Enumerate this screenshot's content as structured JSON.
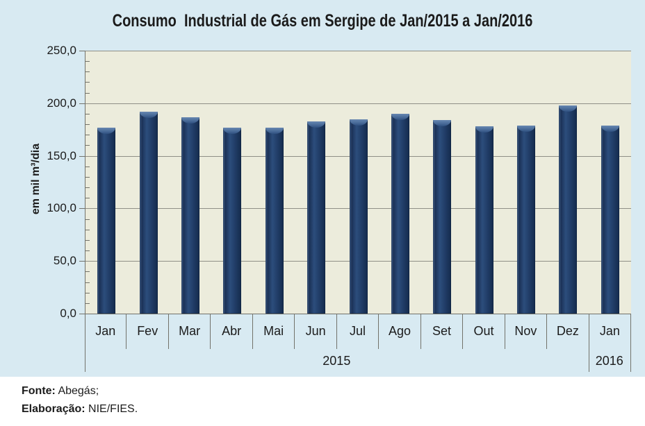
{
  "chart_data": {
    "type": "bar",
    "title": "Consumo  Industrial de Gás em Sergipe de Jan/2015 a Jan/2016",
    "ylabel": "em mil m³/dia",
    "ylim": [
      0,
      250
    ],
    "ytick_step": 50,
    "ytick_labels": [
      "0,0",
      "50,0",
      "100,0",
      "150,0",
      "200,0",
      "250,0"
    ],
    "minor_tick_step": 10,
    "grid": true,
    "legend": "none",
    "categories": [
      "Jan",
      "Fev",
      "Mar",
      "Abr",
      "Mai",
      "Jun",
      "Jul",
      "Ago",
      "Set",
      "Out",
      "Nov",
      "Dez",
      "Jan"
    ],
    "year_groups": [
      {
        "label": "2015",
        "span": 12
      },
      {
        "label": "2016",
        "span": 1
      }
    ],
    "values": [
      177,
      192,
      187,
      177,
      177,
      183,
      185,
      190,
      184,
      178,
      179,
      198,
      179
    ],
    "bar_color": "#1F3A63",
    "bar_highlight_color": "#6787B1",
    "plot_bg": "#ECECDC",
    "chart_bg": "#D8EAF2",
    "gridline_color": "#8F8F86"
  },
  "footer": {
    "source_label": "Fonte:",
    "source_value": "Abegás;",
    "elaboration_label": "Elaboração:",
    "elaboration_value": "NIE/FIES."
  }
}
